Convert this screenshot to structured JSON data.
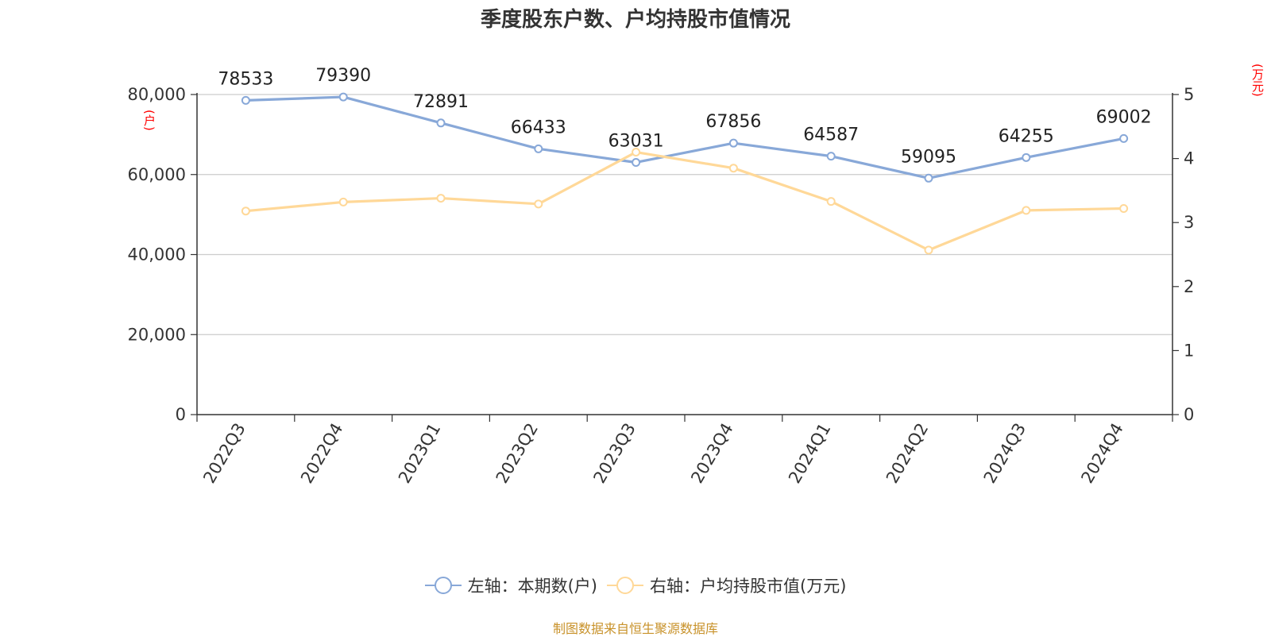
{
  "chart_data": {
    "type": "line",
    "title": "季度股东户数、户均持股市值情况",
    "categories": [
      "2022Q3",
      "2022Q4",
      "2023Q1",
      "2023Q2",
      "2023Q3",
      "2023Q4",
      "2024Q1",
      "2024Q2",
      "2024Q3",
      "2024Q4"
    ],
    "series": [
      {
        "name": "左轴：本期数(户)",
        "axis": "left",
        "color": "#88a8d8",
        "values": [
          78533,
          79390,
          72891,
          66433,
          63031,
          67856,
          64587,
          59095,
          64255,
          69002
        ],
        "data_labels": [
          "78533",
          "79390",
          "72891",
          "66433",
          "63031",
          "67856",
          "64587",
          "59095",
          "64255",
          "69002"
        ]
      },
      {
        "name": "右轴：户均持股市值(万元)",
        "axis": "right",
        "color": "#ffd898",
        "values": [
          3.18,
          3.32,
          3.38,
          3.29,
          4.1,
          3.85,
          3.33,
          2.57,
          3.19,
          3.22
        ]
      }
    ],
    "left_axis": {
      "unit": "(户)",
      "ylim": [
        0,
        80000
      ],
      "ticks": [
        0,
        20000,
        40000,
        60000,
        80000
      ],
      "tick_labels": [
        "0",
        "20,000",
        "40,000",
        "60,000",
        "80,000"
      ]
    },
    "right_axis": {
      "unit": "(万元)",
      "ylim": [
        0,
        5
      ],
      "ticks": [
        0,
        1,
        2,
        3,
        4,
        5
      ],
      "tick_labels": [
        "0",
        "1",
        "2",
        "3",
        "4",
        "5"
      ]
    },
    "grid": true,
    "legend_position": "bottom"
  },
  "source_note": "制图数据来自恒生聚源数据库"
}
